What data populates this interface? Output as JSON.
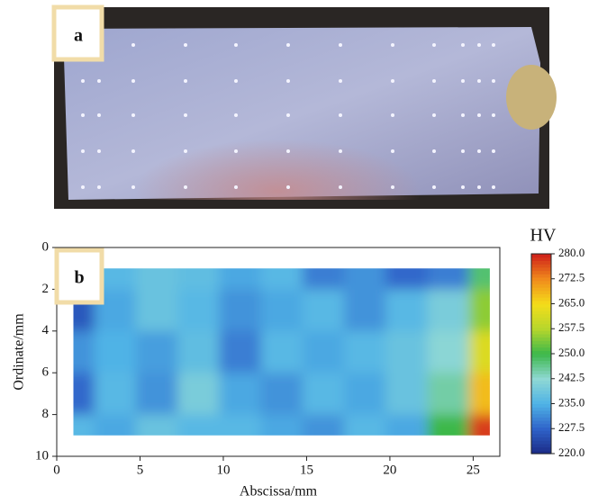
{
  "panel_a": {
    "label": "a"
  },
  "chart_data": {
    "type": "contour",
    "label": "b",
    "x_label": "Abscissa/mm",
    "y_label": "Ordinate/mm",
    "xlim": [
      0,
      26.6
    ],
    "xticks": [
      0,
      5,
      10,
      15,
      20,
      25
    ],
    "ylim": [
      0,
      10
    ],
    "yticks": [
      0,
      2,
      4,
      6,
      8,
      10
    ],
    "y_inverted": true,
    "x": [
      1,
      3.5,
      6,
      8.5,
      11,
      13.5,
      16,
      18.5,
      21,
      23.5,
      26
    ],
    "y": [
      1,
      3,
      5,
      7,
      9
    ],
    "z": [
      [
        236,
        236,
        238,
        237,
        234,
        236,
        230,
        232,
        228,
        230,
        248
      ],
      [
        226,
        234,
        238,
        236,
        232,
        234,
        236,
        232,
        236,
        240,
        255
      ],
      [
        232,
        235,
        233,
        237,
        230,
        236,
        234,
        236,
        238,
        242,
        262
      ],
      [
        228,
        236,
        232,
        240,
        234,
        232,
        236,
        234,
        238,
        245,
        268
      ],
      [
        236,
        234,
        238,
        236,
        236,
        234,
        232,
        236,
        234,
        250,
        278
      ]
    ],
    "colorbar_title": "HV",
    "clim": [
      220,
      280
    ],
    "colorbar_ticks": [
      {
        "value": 220,
        "label": "220.0"
      },
      {
        "value": 227.5,
        "label": "227.5"
      },
      {
        "value": 235,
        "label": "235.0"
      },
      {
        "value": 242.5,
        "label": "242.5"
      },
      {
        "value": 250,
        "label": "250.0"
      },
      {
        "value": 257.5,
        "label": "257.5"
      },
      {
        "value": 265,
        "label": "265.0"
      },
      {
        "value": 272.5,
        "label": "272.5"
      },
      {
        "value": 280,
        "label": "280.0"
      }
    ],
    "colormap": [
      "#1b2a86",
      "#2f63c9",
      "#4fb3e6",
      "#8fd8d4",
      "#3cb84a",
      "#b6d62c",
      "#f4dd1a",
      "#f08a1c",
      "#cf1f1a"
    ]
  }
}
